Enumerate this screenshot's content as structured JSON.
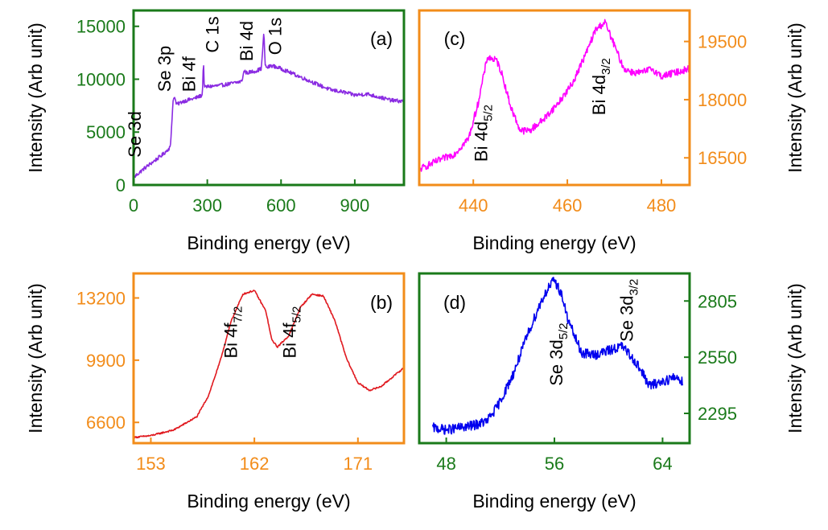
{
  "chart_data": [
    {
      "id": "a",
      "type": "line",
      "panel_label": "(a)",
      "xlabel": "Binding energy (eV)",
      "ylabel": "Intensity (Arb unit)",
      "xlim": [
        0,
        1100
      ],
      "ylim": [
        0,
        16500
      ],
      "xticks": [
        0,
        300,
        600,
        900
      ],
      "yticks": [
        0,
        5000,
        10000,
        15000
      ],
      "frame_color": "#1a7a1a",
      "tick_color": "#1a7a1a",
      "line_color": "#8a2be2",
      "noise": 180,
      "x": [
        5,
        40,
        80,
        120,
        150,
        160,
        165,
        175,
        200,
        250,
        280,
        284,
        288,
        300,
        350,
        400,
        440,
        450,
        460,
        500,
        520,
        530,
        536,
        545,
        560,
        600,
        650,
        700,
        750,
        800,
        850,
        900,
        950,
        1000,
        1050,
        1100
      ],
      "values": [
        800,
        1500,
        2200,
        2900,
        3600,
        7800,
        8400,
        7600,
        7900,
        8200,
        8500,
        11800,
        9200,
        9300,
        9400,
        9600,
        9800,
        10800,
        10600,
        10800,
        11000,
        14400,
        11200,
        11100,
        11300,
        11000,
        10500,
        10000,
        9500,
        9000,
        8800,
        8500,
        8600,
        8300,
        8000,
        7900
      ],
      "annotations": [
        {
          "label": "Se 3d",
          "x": 30,
          "y": 2600
        },
        {
          "label": "Se 3p",
          "x": 150,
          "y": 8800
        },
        {
          "label": "Bi 4f",
          "x": 250,
          "y": 8800
        },
        {
          "label": "C 1s",
          "x": 345,
          "y": 12500
        },
        {
          "label": "Bi 4d",
          "x": 485,
          "y": 11700
        },
        {
          "label": "O 1s",
          "x": 600,
          "y": 12300
        }
      ]
    },
    {
      "id": "b",
      "type": "line",
      "panel_label": "(b)",
      "xlabel": "Binding energy (eV)",
      "ylabel": "Intensity (Arb unit)",
      "xlim": [
        151.5,
        175
      ],
      "ylim": [
        5500,
        14500
      ],
      "xticks": [
        153,
        162,
        171
      ],
      "yticks": [
        6600,
        9900,
        13200
      ],
      "frame_color": "#f28c1a",
      "tick_color": "#f28c1a",
      "line_color": "#e0191f",
      "noise": 40,
      "x": [
        151.5,
        153,
        155,
        157,
        158,
        159,
        160,
        161,
        162,
        163,
        163.5,
        164,
        165,
        166,
        167,
        168,
        169,
        170,
        171,
        172,
        173,
        174,
        175
      ],
      "values": [
        5800,
        5900,
        6200,
        6900,
        8000,
        9800,
        12000,
        13400,
        13600,
        12500,
        11000,
        10600,
        11200,
        12700,
        13400,
        13300,
        12000,
        10000,
        8700,
        8300,
        8500,
        9000,
        9500
      ],
      "annotations": [
        {
          "label": "Bi 4f",
          "sub": "7/2",
          "x": 160.5,
          "y": 10000
        },
        {
          "label": "Bi 4f",
          "sub": "5/2",
          "x": 165.6,
          "y": 10000
        }
      ]
    },
    {
      "id": "c",
      "type": "line",
      "panel_label": "(c)",
      "xlabel": "Binding energy (eV)",
      "ylabel": "Intensity (Arb unit)",
      "xlim": [
        428.5,
        486
      ],
      "ylim": [
        15800,
        20300
      ],
      "xticks": [
        440,
        460,
        480
      ],
      "yticks": [
        16500,
        18000,
        19500
      ],
      "frame_color": "#f28c1a",
      "tick_color": "#f28c1a",
      "line_color": "#ff00ff",
      "noise": 90,
      "x": [
        428.5,
        432,
        436,
        439,
        441,
        443,
        445,
        446,
        448,
        450,
        452,
        455,
        458,
        461,
        464,
        466,
        468,
        470,
        472,
        474,
        476,
        478,
        480,
        483,
        486
      ],
      "values": [
        16200,
        16400,
        16600,
        17000,
        17900,
        19100,
        19000,
        18700,
        17800,
        17200,
        17200,
        17500,
        17900,
        18400,
        19200,
        19800,
        20000,
        19400,
        18800,
        18700,
        18700,
        18800,
        18600,
        18700,
        18800
      ],
      "annotations": [
        {
          "label": "Bi 4d",
          "sub": "5/2",
          "x": 443,
          "y": 16400
        },
        {
          "label": "Bi 4d",
          "sub": "3/2",
          "x": 468,
          "y": 17600
        }
      ]
    },
    {
      "id": "d",
      "type": "line",
      "panel_label": "(d)",
      "xlabel": "Binding energy (eV)",
      "ylabel": "Intensity (Arb unit)",
      "xlim": [
        46,
        66
      ],
      "ylim": [
        2160,
        2930
      ],
      "xticks": [
        48,
        56,
        64
      ],
      "yticks": [
        2295,
        2550,
        2805
      ],
      "frame_color": "#1a7a1a",
      "tick_color": "#1a7a1a",
      "line_color": "#0000ee",
      "noise": 22,
      "x": [
        47,
        48,
        49,
        50,
        51,
        51.5,
        52,
        53,
        54,
        55,
        55.5,
        56,
        56.5,
        57,
        58,
        59,
        60,
        61,
        62,
        62.5,
        63,
        64,
        65,
        65.5
      ],
      "values": [
        2230,
        2220,
        2230,
        2240,
        2260,
        2300,
        2350,
        2480,
        2650,
        2800,
        2860,
        2900,
        2840,
        2720,
        2570,
        2560,
        2580,
        2600,
        2530,
        2480,
        2420,
        2440,
        2460,
        2440
      ],
      "annotations": [
        {
          "label": "Se 3d",
          "sub": "5/2",
          "x": 56.6,
          "y": 2420
        },
        {
          "label": "Se 3d",
          "sub": "3/2",
          "x": 61.8,
          "y": 2620
        }
      ]
    }
  ]
}
